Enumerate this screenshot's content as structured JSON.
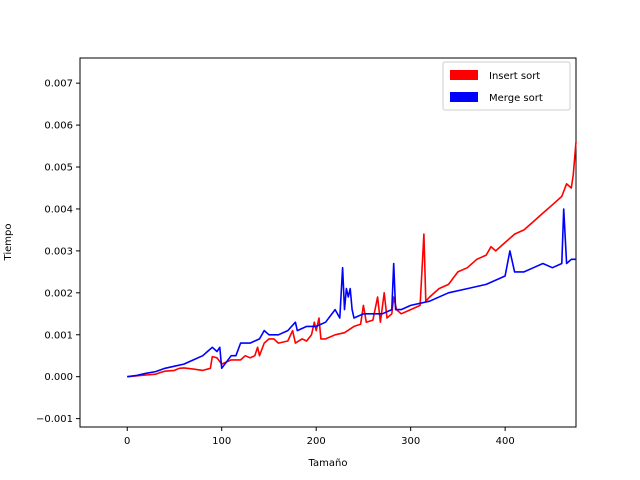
{
  "chart_data": {
    "type": "line",
    "title": "",
    "xlabel": "Tamaño",
    "ylabel": "Tiempo",
    "xlim": [
      -50,
      475
    ],
    "ylim": [
      -0.0012,
      0.0076
    ],
    "xticks": [
      0,
      100,
      200,
      300,
      400
    ],
    "yticks": [
      -0.001,
      0.0,
      0.001,
      0.002,
      0.003,
      0.004,
      0.005,
      0.006,
      0.007
    ],
    "ytick_labels": [
      "−0.001",
      "0.000",
      "0.001",
      "0.002",
      "0.003",
      "0.004",
      "0.005",
      "0.006",
      "0.007"
    ],
    "grid": false,
    "legend_position": "top-right",
    "series": [
      {
        "name": "Insert sort",
        "color": "#ff0000",
        "points": [
          [
            0,
            0.0
          ],
          [
            10,
            2e-05
          ],
          [
            20,
            4e-05
          ],
          [
            30,
            6e-05
          ],
          [
            35,
            0.0001
          ],
          [
            40,
            0.00013
          ],
          [
            50,
            0.00015
          ],
          [
            55,
            0.0002
          ],
          [
            60,
            0.00021
          ],
          [
            70,
            0.00018
          ],
          [
            80,
            0.00015
          ],
          [
            88,
            0.0002
          ],
          [
            90,
            0.00048
          ],
          [
            95,
            0.00045
          ],
          [
            100,
            0.0003
          ],
          [
            105,
            0.00035
          ],
          [
            110,
            0.0004
          ],
          [
            120,
            0.0004
          ],
          [
            125,
            0.0005
          ],
          [
            130,
            0.00045
          ],
          [
            135,
            0.0005
          ],
          [
            138,
            0.0007
          ],
          [
            140,
            0.0005
          ],
          [
            145,
            0.0008
          ],
          [
            150,
            0.0009
          ],
          [
            155,
            0.0009
          ],
          [
            160,
            0.0008
          ],
          [
            170,
            0.00085
          ],
          [
            175,
            0.0011
          ],
          [
            178,
            0.0008
          ],
          [
            185,
            0.0009
          ],
          [
            190,
            0.00085
          ],
          [
            195,
            0.001
          ],
          [
            198,
            0.0013
          ],
          [
            200,
            0.0011
          ],
          [
            203,
            0.0014
          ],
          [
            205,
            0.0009
          ],
          [
            210,
            0.0009
          ],
          [
            220,
            0.001
          ],
          [
            230,
            0.00105
          ],
          [
            240,
            0.0012
          ],
          [
            247,
            0.00125
          ],
          [
            250,
            0.0017
          ],
          [
            253,
            0.0013
          ],
          [
            260,
            0.00135
          ],
          [
            265,
            0.0019
          ],
          [
            268,
            0.0013
          ],
          [
            272,
            0.002
          ],
          [
            275,
            0.0014
          ],
          [
            280,
            0.0015
          ],
          [
            282,
            0.0019
          ],
          [
            285,
            0.0016
          ],
          [
            290,
            0.0015
          ],
          [
            300,
            0.0016
          ],
          [
            310,
            0.0017
          ],
          [
            314,
            0.0034
          ],
          [
            316,
            0.0018
          ],
          [
            320,
            0.0019
          ],
          [
            330,
            0.0021
          ],
          [
            340,
            0.0022
          ],
          [
            350,
            0.0025
          ],
          [
            360,
            0.0026
          ],
          [
            370,
            0.0028
          ],
          [
            380,
            0.0029
          ],
          [
            385,
            0.0031
          ],
          [
            390,
            0.003
          ],
          [
            400,
            0.0032
          ],
          [
            410,
            0.0034
          ],
          [
            420,
            0.0035
          ],
          [
            430,
            0.0037
          ],
          [
            440,
            0.0039
          ],
          [
            450,
            0.0041
          ],
          [
            460,
            0.0043
          ],
          [
            465,
            0.0046
          ],
          [
            470,
            0.0045
          ],
          [
            472,
            0.0048
          ],
          [
            475,
            0.0056
          ]
        ]
      },
      {
        "name": "Merge sort",
        "color": "#0000ff",
        "points": [
          [
            0,
            0.0
          ],
          [
            10,
            3e-05
          ],
          [
            20,
            8e-05
          ],
          [
            30,
            0.00012
          ],
          [
            40,
            0.0002
          ],
          [
            50,
            0.00025
          ],
          [
            60,
            0.0003
          ],
          [
            70,
            0.0004
          ],
          [
            80,
            0.0005
          ],
          [
            85,
            0.0006
          ],
          [
            90,
            0.0007
          ],
          [
            95,
            0.0006
          ],
          [
            98,
            0.0007
          ],
          [
            100,
            0.0002
          ],
          [
            110,
            0.0005
          ],
          [
            115,
            0.0005
          ],
          [
            120,
            0.0008
          ],
          [
            130,
            0.0008
          ],
          [
            140,
            0.0009
          ],
          [
            145,
            0.0011
          ],
          [
            150,
            0.001
          ],
          [
            160,
            0.001
          ],
          [
            170,
            0.0011
          ],
          [
            178,
            0.0013
          ],
          [
            180,
            0.0011
          ],
          [
            190,
            0.0012
          ],
          [
            200,
            0.0012
          ],
          [
            210,
            0.0013
          ],
          [
            220,
            0.0016
          ],
          [
            225,
            0.0014
          ],
          [
            228,
            0.0026
          ],
          [
            230,
            0.0016
          ],
          [
            232,
            0.0021
          ],
          [
            234,
            0.0019
          ],
          [
            236,
            0.0021
          ],
          [
            238,
            0.0016
          ],
          [
            240,
            0.0014
          ],
          [
            250,
            0.0015
          ],
          [
            260,
            0.0015
          ],
          [
            270,
            0.0015
          ],
          [
            280,
            0.0016
          ],
          [
            282,
            0.0027
          ],
          [
            284,
            0.0016
          ],
          [
            290,
            0.0016
          ],
          [
            300,
            0.0017
          ],
          [
            320,
            0.0018
          ],
          [
            340,
            0.002
          ],
          [
            360,
            0.0021
          ],
          [
            380,
            0.0022
          ],
          [
            400,
            0.0024
          ],
          [
            405,
            0.003
          ],
          [
            410,
            0.0025
          ],
          [
            420,
            0.0025
          ],
          [
            430,
            0.0026
          ],
          [
            440,
            0.0027
          ],
          [
            450,
            0.0026
          ],
          [
            460,
            0.0027
          ],
          [
            462,
            0.004
          ],
          [
            465,
            0.0027
          ],
          [
            470,
            0.0028
          ],
          [
            475,
            0.0028
          ]
        ]
      }
    ]
  }
}
